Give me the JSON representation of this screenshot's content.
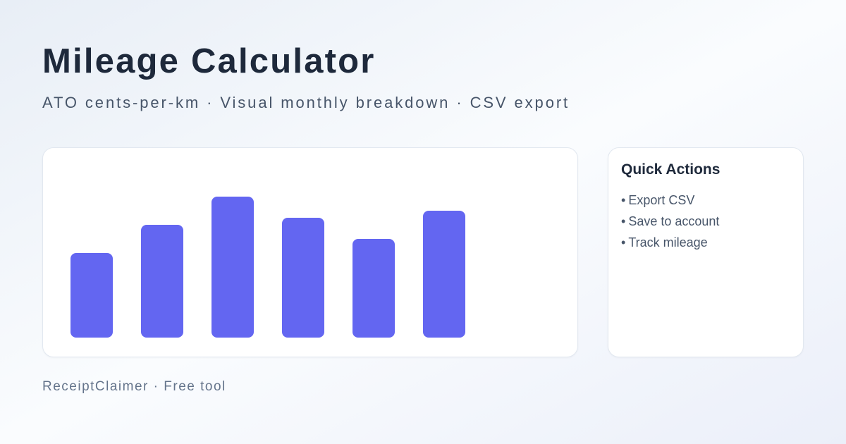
{
  "page": {
    "title": "Mileage Calculator",
    "subtitle": "ATO cents-per-km · Visual monthly breakdown · CSV export",
    "footer": "ReceiptClaimer · Free tool"
  },
  "quick_actions": {
    "title": "Quick Actions",
    "bullet": "•",
    "items": [
      "Export CSV",
      "Save to account",
      "Track mileage"
    ]
  },
  "chart_data": {
    "type": "bar",
    "categories": [
      "",
      "",
      "",
      "",
      "",
      ""
    ],
    "values": [
      120,
      160,
      200,
      170,
      140,
      180
    ],
    "title": "",
    "xlabel": "",
    "ylabel": "",
    "ylim": [
      0,
      200
    ],
    "bar_color": "#6366f1",
    "legend": false,
    "grid": false
  },
  "colors": {
    "background_start": "#e8eef6",
    "background_mid": "#fafcfe",
    "background_end": "#ebeff9",
    "card_background": "#ffffff",
    "card_border": "#e2e8f0",
    "heading_text": "#1e293b",
    "body_text": "#475569",
    "footer_text": "#64748b",
    "accent": "#6366f1"
  }
}
